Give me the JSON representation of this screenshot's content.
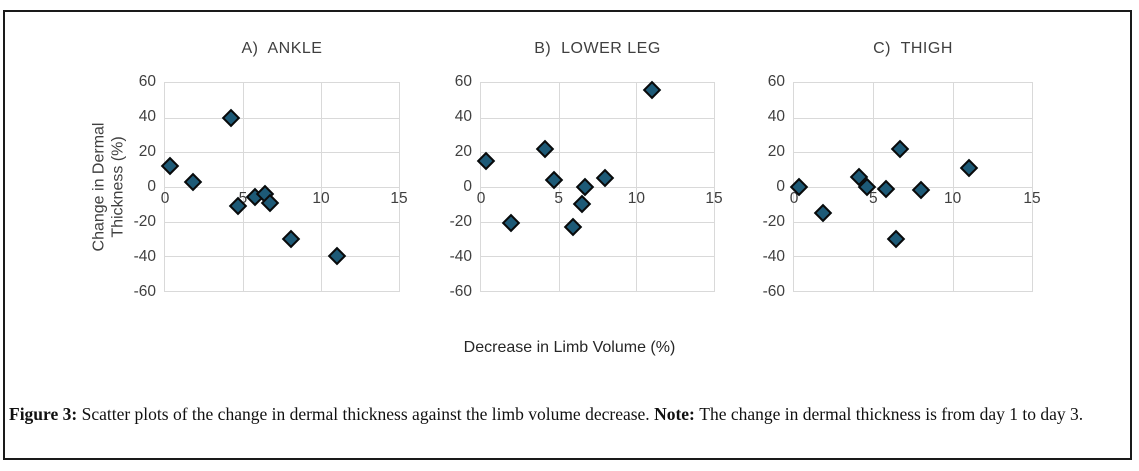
{
  "figure": {
    "xlabel": "Decrease in Limb Volume (%)"
  },
  "caption": {
    "segments": [
      {
        "text": "Figure 3: ",
        "bold": true
      },
      {
        "text": "Scatter plots of the change in dermal thickness against the limb volume decrease. ",
        "bold": false
      },
      {
        "text": "Note: ",
        "bold": true
      },
      {
        "text": "The change in dermal thickness is from day 1 to day 3.",
        "bold": false
      }
    ]
  },
  "colors": {
    "marker_fill": "#1d5a77",
    "marker_edge": "#0a0a0a",
    "grid": "#d9d9d9",
    "axis_text": "#3f3f3f",
    "frame_border": "#1a1a1a"
  },
  "chart_data": [
    {
      "type": "scatter",
      "title": "A)  ANKLE",
      "ylabel_lines": [
        "Change in Dermal",
        "Thickness (%)"
      ],
      "xlabel": "Decrease in Limb Volume (%)",
      "xlim": [
        0,
        15
      ],
      "ylim": [
        -60,
        60
      ],
      "xticks": [
        0,
        5,
        10,
        15
      ],
      "yticks": [
        60,
        40,
        20,
        0,
        -20,
        -40,
        -60
      ],
      "grid": true,
      "legend": false,
      "points": [
        [
          0.3,
          12
        ],
        [
          1.8,
          3
        ],
        [
          4.2,
          40
        ],
        [
          4.7,
          -11
        ],
        [
          5.8,
          -6
        ],
        [
          6.4,
          -4
        ],
        [
          6.7,
          -9
        ],
        [
          8.1,
          -30
        ],
        [
          11,
          -40
        ]
      ]
    },
    {
      "type": "scatter",
      "title": "B)  LOWER LEG",
      "xlabel": "Decrease in Limb Volume (%)",
      "xlim": [
        0,
        15
      ],
      "ylim": [
        -60,
        60
      ],
      "xticks": [
        0,
        5,
        10,
        15
      ],
      "yticks": [
        60,
        40,
        20,
        0,
        -20,
        -40,
        -60
      ],
      "grid": true,
      "legend": false,
      "points": [
        [
          0.3,
          15
        ],
        [
          1.9,
          -21
        ],
        [
          4.1,
          22
        ],
        [
          4.7,
          4
        ],
        [
          5.9,
          -23
        ],
        [
          6.5,
          -10
        ],
        [
          6.7,
          0
        ],
        [
          8,
          5
        ],
        [
          11,
          56
        ]
      ]
    },
    {
      "type": "scatter",
      "title": "C)  THIGH",
      "xlabel": "Decrease in Limb Volume (%)",
      "xlim": [
        0,
        15
      ],
      "ylim": [
        -60,
        60
      ],
      "xticks": [
        0,
        5,
        10,
        15
      ],
      "yticks": [
        60,
        40,
        20,
        0,
        -20,
        -40,
        -60
      ],
      "grid": true,
      "legend": false,
      "points": [
        [
          0.3,
          0
        ],
        [
          1.8,
          -15
        ],
        [
          4.1,
          6
        ],
        [
          4.6,
          0
        ],
        [
          5.8,
          -1
        ],
        [
          6.4,
          -30
        ],
        [
          6.7,
          22
        ],
        [
          8,
          -2
        ],
        [
          11,
          11
        ]
      ]
    }
  ]
}
